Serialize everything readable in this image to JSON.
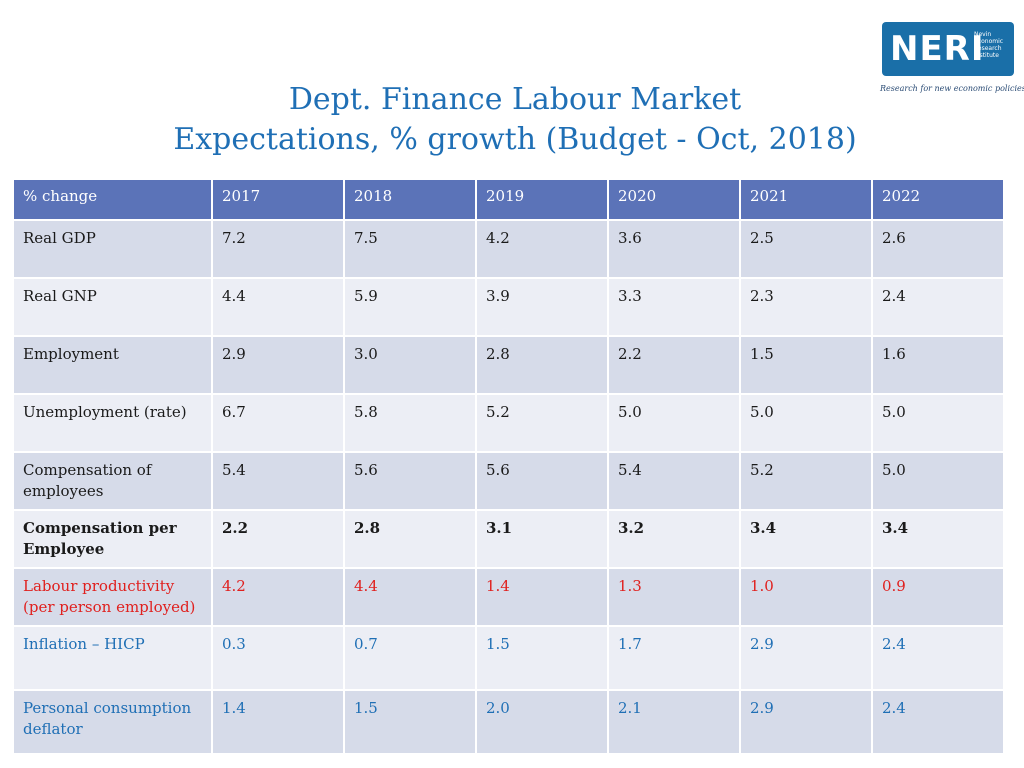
{
  "title_line1": "Dept. Finance Labour Market",
  "title_line2": "Expectations, % growth (Budget - Oct, 2018)",
  "logo": {
    "word": "NERI",
    "sub": [
      "Nevin",
      "Economic",
      "Research",
      "Institute"
    ],
    "tagline": "Research for new economic policies",
    "color": "#1a6fa8"
  },
  "table": {
    "headers": [
      "% change",
      "2017",
      "2018",
      "2019",
      "2020",
      "2021",
      "2022"
    ],
    "rows": [
      {
        "label": "Real GDP",
        "values": [
          "7.2",
          "7.5",
          "4.2",
          "3.6",
          "2.5",
          "2.6"
        ]
      },
      {
        "label": "Real GNP",
        "values": [
          "4.4",
          "5.9",
          "3.9",
          "3.3",
          "2.3",
          "2.4"
        ]
      },
      {
        "label": "Employment",
        "values": [
          "2.9",
          "3.0",
          "2.8",
          "2.2",
          "1.5",
          "1.6"
        ]
      },
      {
        "label": "Unemployment (rate)",
        "values": [
          "6.7",
          "5.8",
          "5.2",
          "5.0",
          "5.0",
          "5.0"
        ]
      },
      {
        "label": "Compensation of employees",
        "values": [
          "5.4",
          "5.6",
          "5.6",
          "5.4",
          "5.2",
          "5.0"
        ]
      },
      {
        "label": "Compensation per Employee",
        "values": [
          "2.2",
          "2.8",
          "3.1",
          "3.2",
          "3.4",
          "3.4"
        ]
      },
      {
        "label": "Labour productivity (per person employed)",
        "values": [
          "4.2",
          "4.4",
          "1.4",
          "1.3",
          "1.0",
          "0.9"
        ]
      },
      {
        "label": "Inflation – HICP",
        "values": [
          "0.3",
          "0.7",
          "1.5",
          "1.7",
          "2.9",
          "2.4"
        ]
      },
      {
        "label": "Personal consumption deflator",
        "values": [
          "1.4",
          "1.5",
          "2.0",
          "2.1",
          "2.9",
          "2.4"
        ]
      }
    ]
  },
  "colors": {
    "header_bg": "#5b73b8",
    "row_dark": "#d6dbe9",
    "row_light": "#eceef5",
    "title": "#1f6fb5",
    "productivity_text": "#e0201e",
    "inflation_text": "#1f6fb5"
  }
}
